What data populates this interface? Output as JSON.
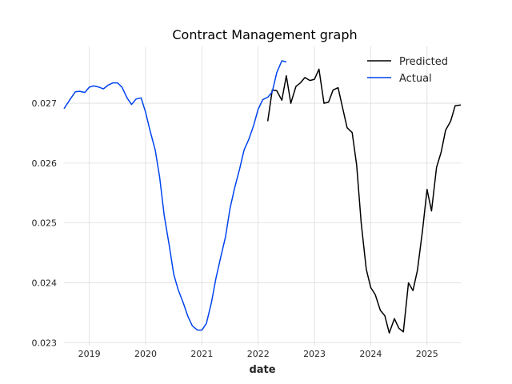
{
  "chart_data": {
    "type": "line",
    "title": "Contract Management graph",
    "xlabel": "date",
    "ylabel": "",
    "xlim": [
      2018.55,
      2025.6
    ],
    "ylim": [
      0.02295,
      0.02795
    ],
    "x_ticks": [
      2019,
      2020,
      2021,
      2022,
      2023,
      2024,
      2025
    ],
    "y_ticks": [
      0.023,
      0.024,
      0.025,
      0.026,
      0.027
    ],
    "grid": true,
    "legend_position": "top-right",
    "series": [
      {
        "name": "Predicted",
        "color": "#000000",
        "points": [
          [
            2022.17,
            0.0267
          ],
          [
            2022.25,
            0.02722
          ],
          [
            2022.33,
            0.02721
          ],
          [
            2022.42,
            0.02705
          ],
          [
            2022.5,
            0.02746
          ],
          [
            2022.58,
            0.027
          ],
          [
            2022.67,
            0.02728
          ],
          [
            2022.75,
            0.02734
          ],
          [
            2022.83,
            0.02743
          ],
          [
            2022.92,
            0.02738
          ],
          [
            2023.0,
            0.0274
          ],
          [
            2023.08,
            0.02757
          ],
          [
            2023.17,
            0.027
          ],
          [
            2023.25,
            0.02702
          ],
          [
            2023.33,
            0.02722
          ],
          [
            2023.42,
            0.02726
          ],
          [
            2023.5,
            0.02692
          ],
          [
            2023.58,
            0.02659
          ],
          [
            2023.67,
            0.02651
          ],
          [
            2023.75,
            0.02597
          ],
          [
            2023.83,
            0.025
          ],
          [
            2023.92,
            0.02423
          ],
          [
            2024.0,
            0.02392
          ],
          [
            2024.08,
            0.0238
          ],
          [
            2024.17,
            0.02354
          ],
          [
            2024.25,
            0.02345
          ],
          [
            2024.33,
            0.02316
          ],
          [
            2024.42,
            0.0234
          ],
          [
            2024.5,
            0.02324
          ],
          [
            2024.58,
            0.02318
          ],
          [
            2024.67,
            0.024
          ],
          [
            2024.75,
            0.02387
          ],
          [
            2024.83,
            0.02421
          ],
          [
            2024.92,
            0.02488
          ],
          [
            2025.0,
            0.02556
          ],
          [
            2025.08,
            0.0252
          ],
          [
            2025.17,
            0.02593
          ],
          [
            2025.25,
            0.02618
          ],
          [
            2025.33,
            0.02655
          ],
          [
            2025.42,
            0.0267
          ],
          [
            2025.5,
            0.02696
          ],
          [
            2025.6,
            0.02697
          ]
        ]
      },
      {
        "name": "Actual",
        "color": "#0044ee",
        "points": [
          [
            2018.55,
            0.02691
          ],
          [
            2018.67,
            0.02708
          ],
          [
            2018.75,
            0.02719
          ],
          [
            2018.83,
            0.0272
          ],
          [
            2018.92,
            0.02718
          ],
          [
            2019.0,
            0.02727
          ],
          [
            2019.08,
            0.02729
          ],
          [
            2019.17,
            0.02727
          ],
          [
            2019.25,
            0.02724
          ],
          [
            2019.33,
            0.0273
          ],
          [
            2019.42,
            0.02734
          ],
          [
            2019.5,
            0.02734
          ],
          [
            2019.58,
            0.02727
          ],
          [
            2019.67,
            0.02709
          ],
          [
            2019.75,
            0.02698
          ],
          [
            2019.83,
            0.02707
          ],
          [
            2019.92,
            0.02709
          ],
          [
            2020.0,
            0.02685
          ],
          [
            2020.08,
            0.02654
          ],
          [
            2020.17,
            0.02622
          ],
          [
            2020.25,
            0.02576
          ],
          [
            2020.33,
            0.02513
          ],
          [
            2020.42,
            0.02462
          ],
          [
            2020.5,
            0.02414
          ],
          [
            2020.58,
            0.02388
          ],
          [
            2020.67,
            0.02366
          ],
          [
            2020.75,
            0.02344
          ],
          [
            2020.83,
            0.02328
          ],
          [
            2020.92,
            0.02321
          ],
          [
            2021.0,
            0.02321
          ],
          [
            2021.08,
            0.02332
          ],
          [
            2021.17,
            0.02367
          ],
          [
            2021.25,
            0.02408
          ],
          [
            2021.33,
            0.02441
          ],
          [
            2021.42,
            0.02477
          ],
          [
            2021.5,
            0.02524
          ],
          [
            2021.58,
            0.02558
          ],
          [
            2021.67,
            0.0259
          ],
          [
            2021.75,
            0.02622
          ],
          [
            2021.83,
            0.02639
          ],
          [
            2021.92,
            0.02663
          ],
          [
            2022.0,
            0.0269
          ],
          [
            2022.08,
            0.02706
          ],
          [
            2022.17,
            0.0271
          ],
          [
            2022.25,
            0.02719
          ],
          [
            2022.33,
            0.02751
          ],
          [
            2022.42,
            0.02771
          ],
          [
            2022.5,
            0.02769
          ]
        ]
      }
    ]
  }
}
